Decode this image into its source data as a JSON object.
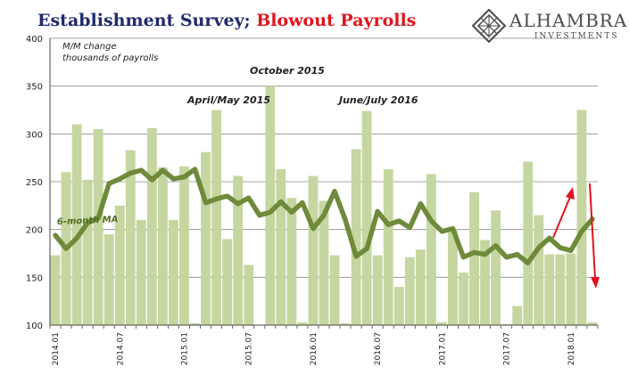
{
  "title": {
    "part1": "Establishment Survey; ",
    "part2": "Blowout Payrolls"
  },
  "logo": {
    "name": "ALHAMBRA",
    "subtitle": "INVESTMENTS",
    "icon": "diamond-lattice-icon"
  },
  "colors": {
    "bars": "#c5d6a0",
    "ma_line": "#6e8a3a",
    "arrow": "#e0141b",
    "title_navy": "#1f2a6b",
    "title_red": "#e0141b"
  },
  "chart_data": {
    "type": "bar",
    "ylabel_lines": [
      "M/M change",
      "thousands of payrolls"
    ],
    "ylim": [
      100,
      400
    ],
    "yticks": [
      100,
      150,
      200,
      250,
      300,
      350,
      400
    ],
    "grid": "horizontal",
    "x_tick_labels": [
      "2014.01",
      "2014.07",
      "2015.01",
      "2015.07",
      "2016.01",
      "2016.07",
      "2017.01",
      "2017.07",
      "2018.01"
    ],
    "x_tick_index": [
      0,
      6,
      12,
      18,
      24,
      30,
      36,
      42,
      48
    ],
    "categories": [
      "2014.01",
      "2014.02",
      "2014.03",
      "2014.04",
      "2014.05",
      "2014.06",
      "2014.07",
      "2014.08",
      "2014.09",
      "2014.10",
      "2014.11",
      "2014.12",
      "2015.01",
      "2015.02",
      "2015.03",
      "2015.04",
      "2015.05",
      "2015.06",
      "2015.07",
      "2015.08",
      "2015.09",
      "2015.10",
      "2015.11",
      "2015.12",
      "2016.01",
      "2016.02",
      "2016.03",
      "2016.04",
      "2016.05",
      "2016.06",
      "2016.07",
      "2016.08",
      "2016.09",
      "2016.10",
      "2016.11",
      "2016.12",
      "2017.01",
      "2017.02",
      "2017.03",
      "2017.04",
      "2017.05",
      "2017.06",
      "2017.07",
      "2017.08",
      "2017.09",
      "2017.10",
      "2017.11",
      "2017.12",
      "2018.01",
      "2018.02",
      "2018.03"
    ],
    "series": [
      {
        "type": "bar",
        "values": [
          173,
          260,
          310,
          252,
          305,
          195,
          225,
          283,
          210,
          306,
          265,
          210,
          266,
          102,
          281,
          325,
          190,
          256,
          163,
          100,
          350,
          263,
          233,
          103,
          256,
          230,
          173,
          102,
          284,
          324,
          173,
          263,
          140,
          171,
          179,
          258,
          103,
          200,
          155,
          239,
          189,
          220,
          101,
          120,
          271,
          215,
          174,
          174,
          175,
          325,
          103
        ]
      },
      {
        "name": "6-month MA",
        "type": "line",
        "values": [
          194,
          180,
          191,
          207,
          212,
          248,
          253,
          259,
          262,
          252,
          262,
          253,
          255,
          263,
          228,
          232,
          235,
          227,
          233,
          215,
          218,
          229,
          218,
          228,
          201,
          215,
          240,
          210,
          172,
          180,
          219,
          205,
          209,
          202,
          227,
          209,
          198,
          201,
          171,
          176,
          174,
          183,
          171,
          174,
          165,
          181,
          191,
          181,
          178,
          198,
          211
        ]
      }
    ],
    "annotations": [
      "October 2015",
      "April/May 2015",
      "June/July 2016"
    ]
  }
}
